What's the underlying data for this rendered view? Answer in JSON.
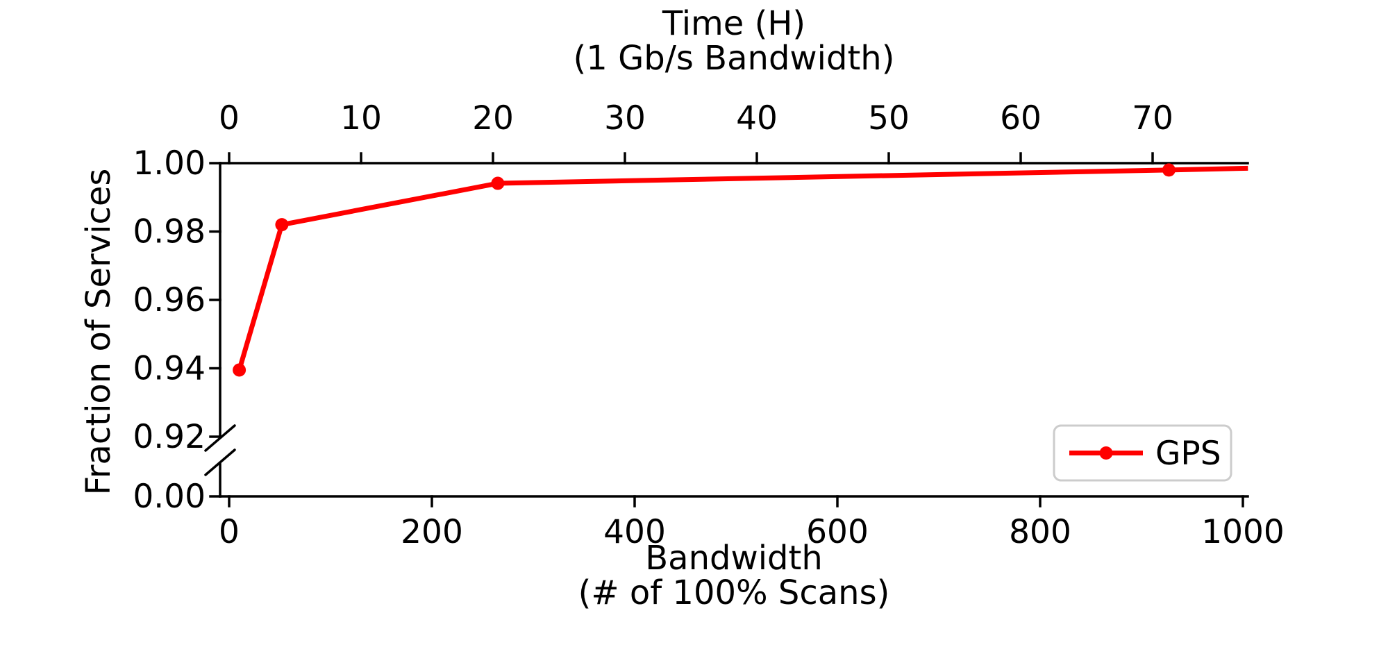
{
  "page": {
    "background": "#ffffff"
  },
  "chart_data": {
    "type": "line",
    "x_axis_top": {
      "label_lines": [
        "Time (H)",
        "(1 Gb/s Bandwidth)"
      ],
      "tick_labels": [
        "0",
        "10",
        "20",
        "30",
        "40",
        "50",
        "60",
        "70"
      ],
      "tick_values_hours": [
        0,
        10,
        20,
        30,
        40,
        50,
        60,
        70
      ],
      "hours_at_right_edge": 77.2
    },
    "x_axis_bottom": {
      "label_lines": [
        "Bandwidth",
        "(# of 100% Scans)"
      ],
      "tick_labels": [
        "0",
        "200",
        "400",
        "600",
        "800",
        "1000"
      ],
      "tick_values": [
        0,
        200,
        400,
        600,
        800,
        1000
      ],
      "range": [
        -9,
        1005
      ]
    },
    "y_axis": {
      "label": "Fraction of Services",
      "upper_tick_labels": [
        "1.00",
        "0.98",
        "0.96",
        "0.94",
        "0.92"
      ],
      "upper_tick_values": [
        1.0,
        0.98,
        0.96,
        0.94,
        0.92
      ],
      "bottom_tick_label": "0.00",
      "bottom_tick_value": 0.0,
      "broken_axis": true,
      "upper_segment_range": [
        0.92,
        1.0
      ]
    },
    "series": [
      {
        "name": "GPS",
        "color": "#ff0000",
        "marker": "circle",
        "points": [
          {
            "bandwidth": 10,
            "time_hours": 0.8,
            "fraction": 0.9395
          },
          {
            "bandwidth": 52,
            "time_hours": 4.0,
            "fraction": 0.982
          },
          {
            "bandwidth": 265,
            "time_hours": 20.4,
            "fraction": 0.9941
          },
          {
            "bandwidth": 927,
            "time_hours": 71.2,
            "fraction": 0.998
          }
        ],
        "line_extends_to": {
          "bandwidth": 1005,
          "fraction": 0.9985
        }
      }
    ],
    "legend": {
      "position": "lower-right",
      "entries": [
        "GPS"
      ],
      "border_color": "#cccccc",
      "background": "#ffffff"
    }
  }
}
